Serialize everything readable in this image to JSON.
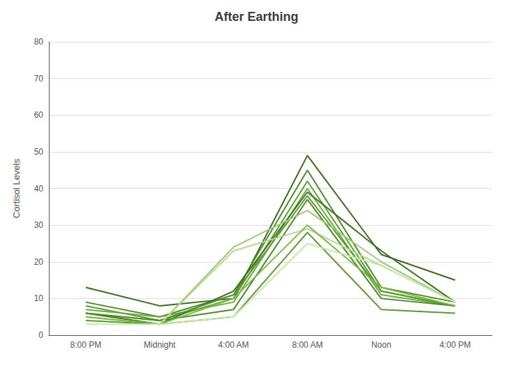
{
  "chart_data": {
    "type": "line",
    "title": "After Earthing",
    "ylabel": "Cortisol Levels",
    "categories": [
      "8:00 PM",
      "Midnight",
      "4:00 AM",
      "8:00 AM",
      "Noon",
      "4:00 PM"
    ],
    "series": [
      {
        "values": [
          13,
          8,
          10,
          49,
          22,
          15
        ],
        "color": "#3a6b1e"
      },
      {
        "values": [
          9,
          5,
          11,
          45,
          13,
          9
        ],
        "color": "#4e8b2a"
      },
      {
        "values": [
          8,
          4,
          10,
          42,
          12,
          8
        ],
        "color": "#5c9e35"
      },
      {
        "values": [
          7,
          5,
          9,
          40,
          11,
          8
        ],
        "color": "#6aaa3e"
      },
      {
        "values": [
          6,
          3,
          12,
          39,
          23,
          9
        ],
        "color": "#3d7022"
      },
      {
        "values": [
          6,
          4,
          11,
          38,
          12,
          8
        ],
        "color": "#5a9932"
      },
      {
        "values": [
          6,
          4,
          7,
          37,
          10,
          8
        ],
        "color": "#4e8b2a"
      },
      {
        "values": [
          5,
          3,
          24,
          34,
          20,
          9
        ],
        "color": "#9ec87a"
      },
      {
        "values": [
          5,
          3,
          23,
          29,
          19,
          9
        ],
        "color": "#b5d98e"
      },
      {
        "values": [
          5,
          3,
          10,
          30,
          13,
          8
        ],
        "color": "#7ab84a"
      },
      {
        "values": [
          4,
          3,
          5,
          28,
          7,
          6
        ],
        "color": "#5a9932"
      },
      {
        "values": [
          3,
          3,
          5,
          25,
          19,
          9
        ],
        "color": "#c8e8a8"
      }
    ],
    "ylim": [
      0,
      80
    ],
    "yticks": [
      0,
      10,
      20,
      30,
      40,
      50,
      60,
      70,
      80
    ],
    "grid": true
  }
}
